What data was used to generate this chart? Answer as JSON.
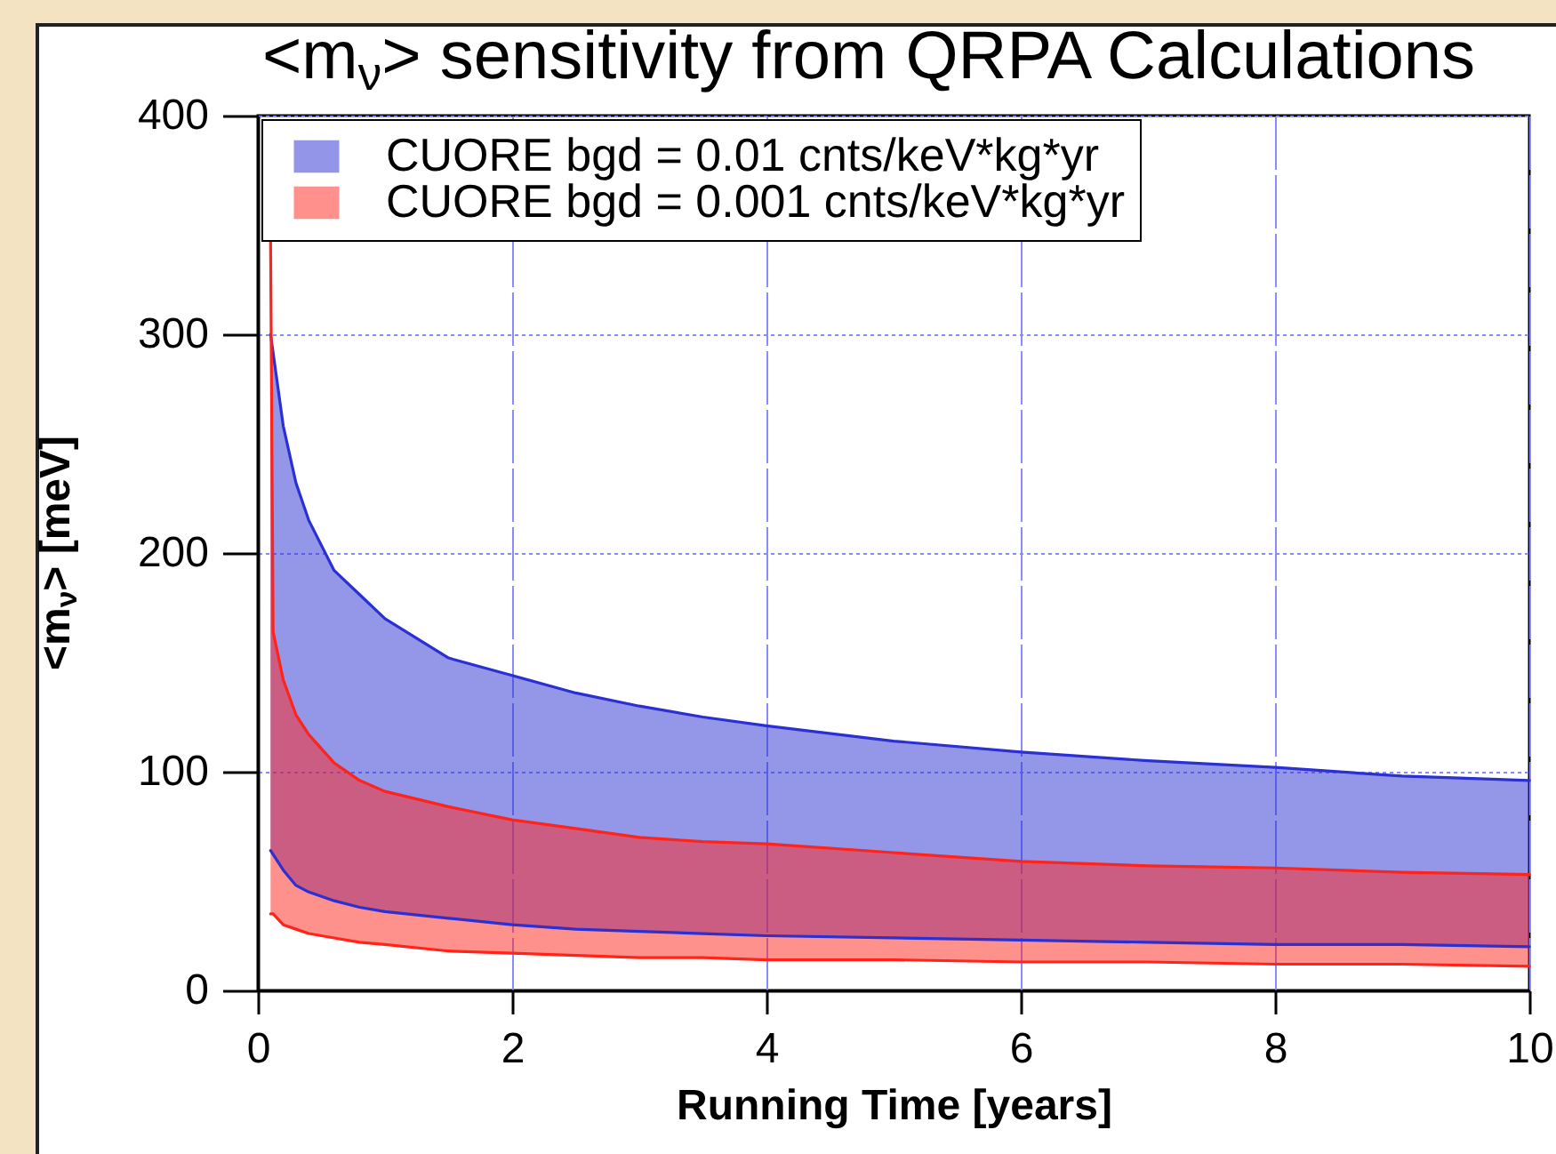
{
  "chart_data": {
    "type": "line",
    "title": "<m$_{ν}$> sensitivity from QRPA Calculations",
    "xlabel": "Running Time [years]",
    "ylabel": "<m$_{ν}$> [meV]",
    "xlim": [
      0,
      10
    ],
    "ylim": [
      0,
      400
    ],
    "xticks": [
      0,
      2,
      4,
      6,
      8,
      10
    ],
    "yticks": [
      0,
      100,
      200,
      300,
      400
    ],
    "grid": true,
    "legend": "top left",
    "series": [
      {
        "name": "CUORE bgd = 0.01 cnts/keV*kg*yr",
        "color": "#2a30d2",
        "x": [
          0.1,
          0.2,
          0.3,
          0.4,
          0.6,
          0.8,
          1,
          1.5,
          2,
          2.5,
          3,
          3.5,
          4,
          5,
          6,
          7,
          8,
          9,
          10
        ],
        "values": [
          300,
          258,
          232,
          215,
          192,
          181,
          170,
          152,
          144,
          136,
          130,
          125,
          121,
          114,
          109,
          105,
          102,
          98,
          96
        ],
        "lower": [
          64,
          55,
          48,
          45,
          41,
          38,
          36,
          33,
          30,
          28,
          27,
          26,
          25,
          24,
          23,
          22,
          21,
          21,
          20
        ],
        "upper": [
          300,
          258,
          232,
          215,
          192,
          181,
          170,
          152,
          144,
          136,
          130,
          125,
          121,
          114,
          109,
          105,
          102,
          98,
          96
        ]
      },
      {
        "color": "#2a30d2",
        "x": [
          0.1,
          0.2,
          0.3,
          0.4,
          0.6,
          0.8,
          1,
          1.5,
          2,
          2.5,
          3,
          3.5,
          4,
          5,
          6,
          7,
          8,
          9,
          10
        ],
        "values": [
          64,
          55,
          48,
          45,
          41,
          38,
          36,
          33,
          30,
          28,
          27,
          26,
          25,
          24,
          23,
          22,
          21,
          21,
          20
        ]
      },
      {
        "name": "CUORE bgd = 0.001 cnts/keV*kg*yr",
        "color": "#ff2319",
        "x": [
          0.1,
          0.12,
          0.2,
          0.3,
          0.4,
          0.6,
          0.8,
          1,
          1.5,
          2,
          2.5,
          3,
          3.5,
          4,
          5,
          6,
          7,
          8,
          9,
          10
        ],
        "values": [
          343,
          164,
          142,
          126,
          117,
          104,
          96,
          91,
          84,
          78,
          74,
          70,
          68,
          67,
          63,
          59,
          57,
          56,
          54,
          53
        ],
        "lower": [
          35,
          35,
          30,
          28,
          26,
          24,
          22,
          21,
          18,
          17,
          16,
          15,
          15,
          14,
          14,
          13,
          13,
          12,
          12,
          11
        ],
        "upper": [
          343,
          164,
          142,
          126,
          117,
          104,
          96,
          91,
          84,
          78,
          74,
          70,
          68,
          67,
          63,
          59,
          57,
          56,
          54,
          53
        ]
      },
      {
        "color": "#ff2319",
        "x": [
          0.1,
          0.12,
          0.2,
          0.3,
          0.4,
          0.6,
          0.8,
          1,
          1.5,
          2,
          2.5,
          3,
          3.5,
          4,
          5,
          6,
          7,
          8,
          9,
          10
        ],
        "values": [
          35,
          35,
          30,
          28,
          26,
          24,
          22,
          21,
          18,
          17,
          16,
          15,
          15,
          14,
          14,
          13,
          13,
          12,
          12,
          11
        ]
      }
    ]
  }
}
